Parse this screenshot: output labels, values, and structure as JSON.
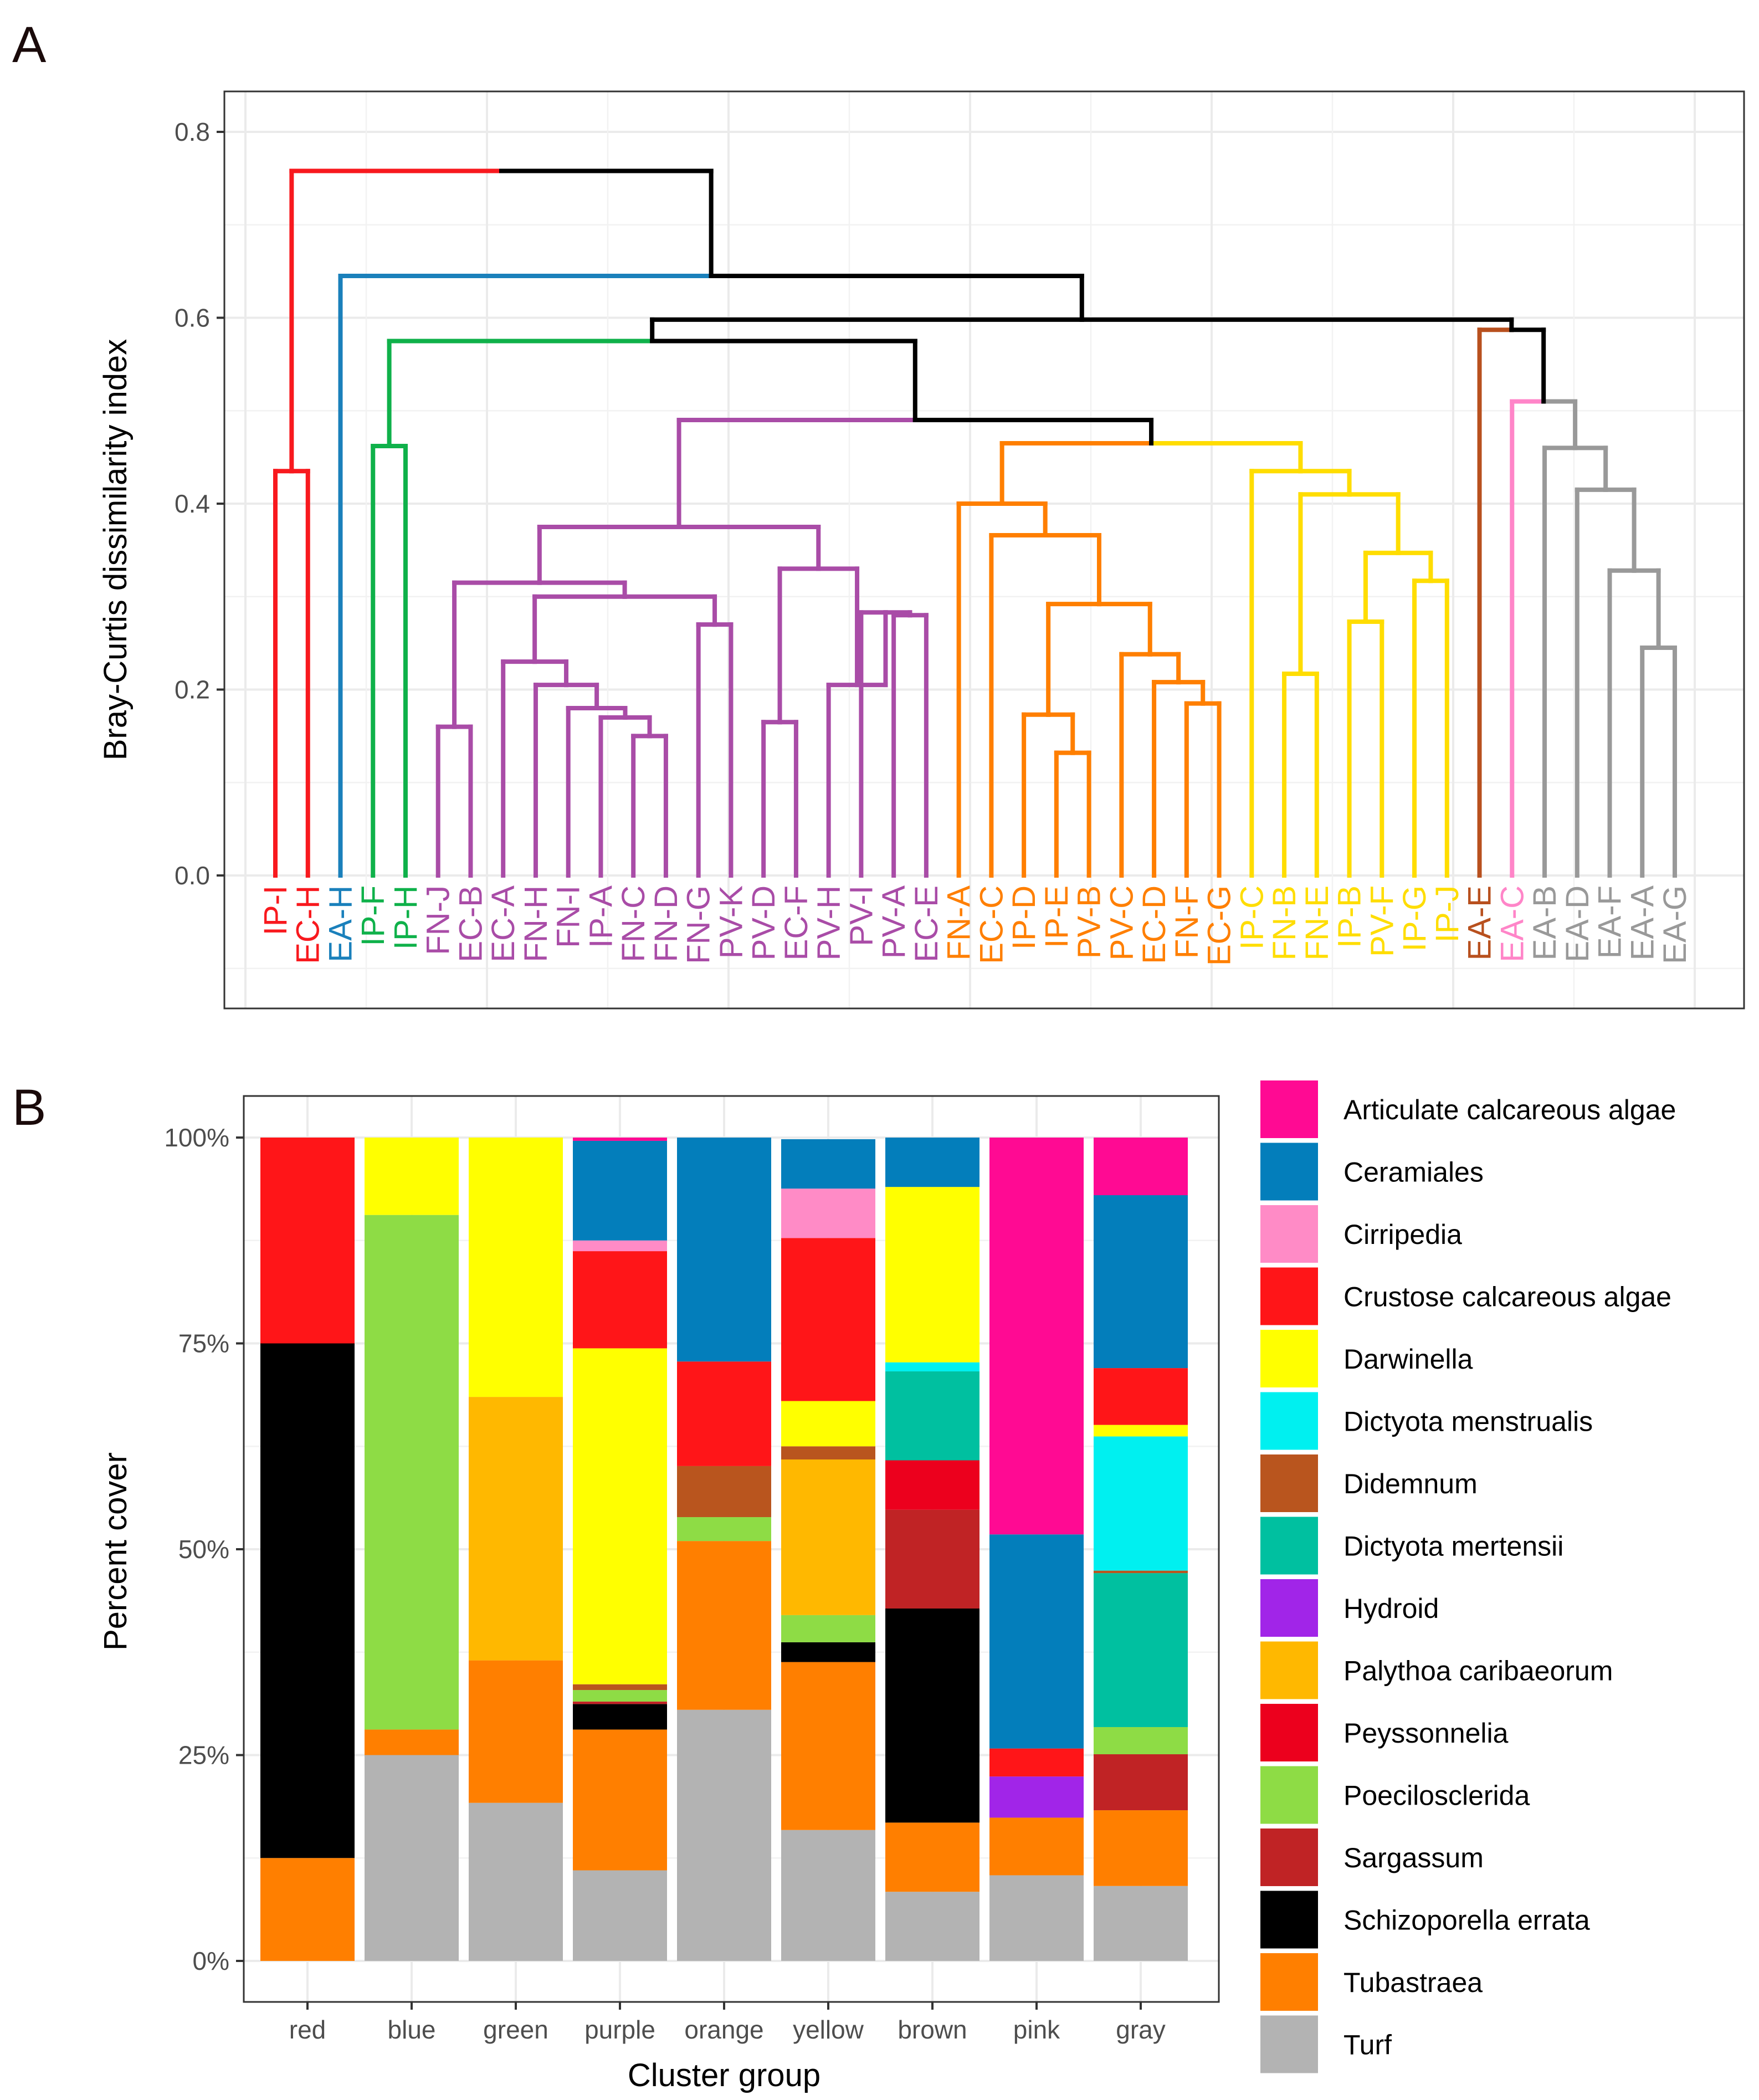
{
  "chart_data": [
    {
      "panel": "A",
      "type": "dendrogram",
      "ylabel": "Bray-Curtis dissimilarity index",
      "xlabel": "",
      "ylim": [
        -0.1,
        0.8
      ],
      "yticks": [
        "0.0",
        "0.2",
        "0.4",
        "0.6",
        "0.8"
      ],
      "grid": true,
      "leaves": [
        {
          "label": "IP-I",
          "group": "red"
        },
        {
          "label": "EC-H",
          "group": "red"
        },
        {
          "label": "EA-H",
          "group": "blue"
        },
        {
          "label": "IP-F",
          "group": "green"
        },
        {
          "label": "IP-H",
          "group": "green"
        },
        {
          "label": "FN-J",
          "group": "purple"
        },
        {
          "label": "EC-B",
          "group": "purple"
        },
        {
          "label": "EC-A",
          "group": "purple"
        },
        {
          "label": "FN-H",
          "group": "purple"
        },
        {
          "label": "FN-I",
          "group": "purple"
        },
        {
          "label": "IP-A",
          "group": "purple"
        },
        {
          "label": "FN-C",
          "group": "purple"
        },
        {
          "label": "FN-D",
          "group": "purple"
        },
        {
          "label": "FN-G",
          "group": "purple"
        },
        {
          "label": "PV-K",
          "group": "purple"
        },
        {
          "label": "PV-D",
          "group": "purple"
        },
        {
          "label": "EC-F",
          "group": "purple"
        },
        {
          "label": "PV-H",
          "group": "purple"
        },
        {
          "label": "PV-I",
          "group": "purple"
        },
        {
          "label": "PV-A",
          "group": "purple"
        },
        {
          "label": "EC-E",
          "group": "purple"
        },
        {
          "label": "FN-A",
          "group": "orange"
        },
        {
          "label": "EC-C",
          "group": "orange"
        },
        {
          "label": "IP-D",
          "group": "orange"
        },
        {
          "label": "IP-E",
          "group": "orange"
        },
        {
          "label": "PV-B",
          "group": "orange"
        },
        {
          "label": "PV-C",
          "group": "orange"
        },
        {
          "label": "EC-D",
          "group": "orange"
        },
        {
          "label": "FN-F",
          "group": "orange"
        },
        {
          "label": "EC-G",
          "group": "orange"
        },
        {
          "label": "IP-C",
          "group": "yellow"
        },
        {
          "label": "FN-B",
          "group": "yellow"
        },
        {
          "label": "FN-E",
          "group": "yellow"
        },
        {
          "label": "IP-B",
          "group": "yellow"
        },
        {
          "label": "PV-F",
          "group": "yellow"
        },
        {
          "label": "IP-G",
          "group": "yellow"
        },
        {
          "label": "IP-J",
          "group": "yellow"
        },
        {
          "label": "EA-E",
          "group": "brown"
        },
        {
          "label": "EA-C",
          "group": "pink"
        },
        {
          "label": "EA-B",
          "group": "gray"
        },
        {
          "label": "EA-D",
          "group": "gray"
        },
        {
          "label": "EA-F",
          "group": "gray"
        },
        {
          "label": "EA-A",
          "group": "gray"
        },
        {
          "label": "EA-G",
          "group": "gray"
        }
      ],
      "group_colors": {
        "red": "#f8191e",
        "blue": "#1a80bb",
        "green": "#0fb14a",
        "purple": "#a94ca7",
        "orange": "#ff7f00",
        "yellow": "#ffdd00",
        "brown": "#b8501e",
        "pink": "#ff85c8",
        "gray": "#999999",
        "root": "#000000"
      },
      "merges": [
        {
          "id": "n_red",
          "a": "IP-I",
          "b": "EC-H",
          "h": 0.435,
          "color": "red"
        },
        {
          "id": "n_green",
          "a": "IP-F",
          "b": "IP-H",
          "h": 0.462,
          "color": "green"
        },
        {
          "id": "p1",
          "a": "FN-J",
          "b": "EC-B",
          "h": 0.16,
          "color": "purple"
        },
        {
          "id": "p2",
          "a": "FN-C",
          "b": "FN-D",
          "h": 0.15,
          "color": "purple"
        },
        {
          "id": "p3",
          "a": "IP-A",
          "b": "p2",
          "h": 0.17,
          "color": "purple"
        },
        {
          "id": "p4",
          "a": "FN-I",
          "b": "p3",
          "h": 0.18,
          "color": "purple"
        },
        {
          "id": "p5",
          "a": "FN-H",
          "b": "p4",
          "h": 0.205,
          "color": "purple"
        },
        {
          "id": "p6",
          "a": "EC-A",
          "b": "p5",
          "h": 0.23,
          "color": "purple"
        },
        {
          "id": "p7",
          "a": "FN-G",
          "b": "PV-K",
          "h": 0.27,
          "color": "purple"
        },
        {
          "id": "p8",
          "a": "p6",
          "b": "p7",
          "h": 0.3,
          "color": "purple"
        },
        {
          "id": "p9",
          "a": "p1",
          "b": "p8",
          "h": 0.315,
          "color": "purple"
        },
        {
          "id": "p10",
          "a": "PV-D",
          "b": "EC-F",
          "h": 0.165,
          "color": "purple"
        },
        {
          "id": "p11",
          "a": "PV-A",
          "b": "EC-E",
          "h": 0.28,
          "color": "purple"
        },
        {
          "id": "p12",
          "a": "PV-I",
          "b": "p11",
          "h": 0.283,
          "color": "purple"
        },
        {
          "id": "p13",
          "a": "PV-H",
          "b": "p12",
          "h": 0.205,
          "color": "purple"
        },
        {
          "id": "p14",
          "a": "p10",
          "b": "p13",
          "h": 0.33,
          "color": "purple"
        },
        {
          "id": "p15",
          "a": "p9",
          "b": "p14",
          "h": 0.375,
          "color": "purple"
        },
        {
          "id": "o1",
          "a": "IP-E",
          "b": "PV-B",
          "h": 0.132,
          "color": "orange"
        },
        {
          "id": "o2",
          "a": "IP-D",
          "b": "o1",
          "h": 0.173,
          "color": "orange"
        },
        {
          "id": "o3",
          "a": "FN-F",
          "b": "EC-G",
          "h": 0.185,
          "color": "orange"
        },
        {
          "id": "o4",
          "a": "EC-D",
          "b": "o3",
          "h": 0.208,
          "color": "orange"
        },
        {
          "id": "o5",
          "a": "PV-C",
          "b": "o4",
          "h": 0.238,
          "color": "orange"
        },
        {
          "id": "o6",
          "a": "o2",
          "b": "o5",
          "h": 0.292,
          "color": "orange"
        },
        {
          "id": "o7",
          "a": "EC-C",
          "b": "o6",
          "h": 0.366,
          "color": "orange"
        },
        {
          "id": "o8",
          "a": "FN-A",
          "b": "o7",
          "h": 0.4,
          "color": "orange"
        },
        {
          "id": "y1",
          "a": "FN-B",
          "b": "FN-E",
          "h": 0.217,
          "color": "yellow"
        },
        {
          "id": "y2",
          "a": "IP-B",
          "b": "PV-F",
          "h": 0.273,
          "color": "yellow"
        },
        {
          "id": "y3",
          "a": "IP-G",
          "b": "IP-J",
          "h": 0.317,
          "color": "yellow"
        },
        {
          "id": "y4",
          "a": "y2",
          "b": "y3",
          "h": 0.347,
          "color": "yellow"
        },
        {
          "id": "y5",
          "a": "y1",
          "b": "y4",
          "h": 0.41,
          "color": "yellow"
        },
        {
          "id": "y6",
          "a": "IP-C",
          "b": "y5",
          "h": 0.435,
          "color": "yellow"
        },
        {
          "id": "g1",
          "a": "EA-A",
          "b": "EA-G",
          "h": 0.245,
          "color": "gray"
        },
        {
          "id": "g2",
          "a": "EA-F",
          "b": "g1",
          "h": 0.328,
          "color": "gray"
        },
        {
          "id": "g3",
          "a": "EA-D",
          "b": "g2",
          "h": 0.415,
          "color": "gray"
        },
        {
          "id": "g4",
          "a": "EA-B",
          "b": "g3",
          "h": 0.46,
          "color": "gray"
        },
        {
          "id": "g5",
          "a": "EA-C",
          "b": "g4",
          "h": 0.51,
          "color": "mixed"
        },
        {
          "id": "r1",
          "a": "o8",
          "b": "y6",
          "h": 0.465,
          "color": "mixed"
        },
        {
          "id": "r2",
          "a": "p15",
          "b": "r1",
          "h": 0.49,
          "color": "mixed"
        },
        {
          "id": "r3",
          "a": "EA-E",
          "b": "g5",
          "h": 0.587,
          "color": "mixed"
        },
        {
          "id": "r4",
          "a": "n_green",
          "b": "r2",
          "h": 0.575,
          "color": "mixed"
        },
        {
          "id": "r5",
          "a": "r4",
          "b": "r3",
          "h": 0.598,
          "color": "root"
        },
        {
          "id": "r6",
          "a": "EA-H",
          "b": "r5",
          "h": 0.645,
          "color": "mixed"
        },
        {
          "id": "r7",
          "a": "n_red",
          "b": "r6",
          "h": 0.758,
          "color": "mixed"
        }
      ]
    },
    {
      "panel": "B",
      "type": "bar",
      "stacked": true,
      "xlabel": "Cluster group",
      "ylabel": "Percent cover",
      "ylim": [
        0,
        100
      ],
      "yticks": [
        "0%",
        "25%",
        "50%",
        "75%",
        "100%"
      ],
      "categories": [
        "red",
        "blue",
        "green",
        "purple",
        "orange",
        "yellow",
        "brown",
        "pink",
        "gray"
      ],
      "legend_position": "right",
      "series": [
        {
          "name": "Articulate calcareous algae",
          "color": "#ff0a93",
          "values": [
            0,
            0,
            0,
            0.4,
            0,
            0,
            0,
            48.2,
            7
          ]
        },
        {
          "name": "Ceramiales",
          "color": "#037ebb",
          "values": [
            0,
            0,
            0,
            12.1,
            27.2,
            6,
            6,
            26,
            21
          ]
        },
        {
          "name": "Cirripedia",
          "color": "#ff8bc6",
          "values": [
            0,
            0,
            0,
            1.3,
            0,
            6,
            0,
            0,
            0
          ]
        },
        {
          "name": "Crustose calcareous algae",
          "color": "#ff1518",
          "values": [
            25,
            0,
            0,
            11.8,
            12.7,
            19.8,
            0,
            3.4,
            6.9
          ]
        },
        {
          "name": "Darwinella",
          "color": "#ffff00",
          "values": [
            0,
            9.4,
            31.5,
            40.8,
            0,
            5.5,
            21.3,
            0,
            1.4
          ]
        },
        {
          "name": "Dictyota menstrualis",
          "color": "#00f0f0",
          "values": [
            0,
            0,
            0,
            0,
            0,
            0,
            1.1,
            0,
            16.3
          ]
        },
        {
          "name": "Didemnum",
          "color": "#b9551e",
          "values": [
            0,
            0,
            0,
            0.7,
            6.2,
            1.6,
            0,
            0,
            0.3
          ]
        },
        {
          "name": "Dictyota mertensii",
          "color": "#00c0a0",
          "values": [
            0,
            0,
            0,
            0,
            0,
            0,
            10.8,
            0,
            18.7
          ]
        },
        {
          "name": "Hydroid",
          "color": "#a125e8",
          "values": [
            0,
            0,
            0,
            0,
            0,
            0,
            0,
            5,
            0
          ]
        },
        {
          "name": "Palythoa caribaeorum",
          "color": "#ffb800",
          "values": [
            0,
            0,
            32,
            0,
            0,
            18.9,
            0,
            0,
            0
          ]
        },
        {
          "name": "Peyssonnelia",
          "color": "#ec001d",
          "values": [
            0,
            0,
            0,
            0,
            0,
            0,
            6,
            0,
            0
          ]
        },
        {
          "name": "Poecilosclerida",
          "color": "#8edc45",
          "values": [
            0,
            62.5,
            0,
            1.4,
            2.9,
            3.3,
            0,
            0,
            3.3
          ]
        },
        {
          "name": "Sargassum",
          "color": "#c02325",
          "values": [
            0,
            0,
            0,
            0.3,
            0,
            0,
            12,
            0,
            6.8
          ]
        },
        {
          "name": "Schizoporella errata",
          "color": "#000000",
          "values": [
            62.5,
            0,
            0,
            3.1,
            0,
            2.4,
            26,
            0,
            0
          ]
        },
        {
          "name": "Tubastraea",
          "color": "#ff7f00",
          "values": [
            12.5,
            3.1,
            17.3,
            17.1,
            20.5,
            20.4,
            8.4,
            7,
            9.2
          ]
        },
        {
          "name": "Turf",
          "color": "#b3b3b3",
          "values": [
            0,
            25,
            19.2,
            11,
            30.5,
            15.9,
            8.4,
            10.4,
            9.1
          ]
        }
      ]
    }
  ],
  "panel_tags": {
    "a": "A",
    "b": "B"
  }
}
